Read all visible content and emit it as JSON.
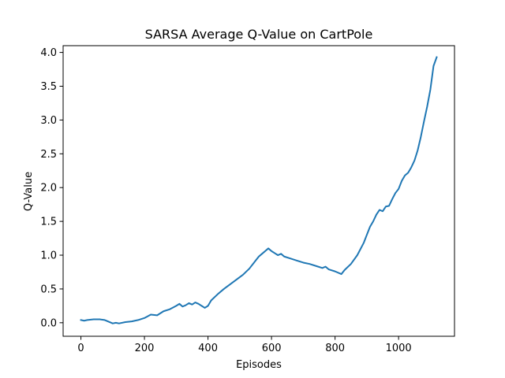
{
  "chart_data": {
    "type": "line",
    "title": "SARSA Average Q-Value on CartPole",
    "xlabel": "Episodes",
    "ylabel": "Q-Value",
    "xlim": [
      -56,
      1176
    ],
    "ylim": [
      -0.2,
      4.1
    ],
    "xticks": [
      0,
      200,
      400,
      600,
      800,
      1000
    ],
    "xtick_labels": [
      "0",
      "200",
      "400",
      "600",
      "800",
      "1000"
    ],
    "yticks": [
      0.0,
      0.5,
      1.0,
      1.5,
      2.0,
      2.5,
      3.0,
      3.5,
      4.0
    ],
    "ytick_labels": [
      "0.0",
      "0.5",
      "1.0",
      "1.5",
      "2.0",
      "2.5",
      "3.0",
      "3.5",
      "4.0"
    ],
    "grid": false,
    "legend": null,
    "line_color": "#1f77b4",
    "series": [
      {
        "x": [
          0,
          10,
          20,
          40,
          60,
          75,
          90,
          100,
          110,
          120,
          140,
          160,
          180,
          200,
          220,
          240,
          260,
          280,
          300,
          310,
          320,
          330,
          340,
          350,
          360,
          370,
          380,
          390,
          400,
          410,
          430,
          450,
          470,
          490,
          510,
          530,
          550,
          560,
          570,
          580,
          590,
          600,
          610,
          620,
          630,
          640,
          660,
          680,
          700,
          720,
          740,
          760,
          770,
          780,
          800,
          820,
          830,
          850,
          870,
          890,
          900,
          910,
          920,
          930,
          940,
          950,
          960,
          970,
          980,
          990,
          1000,
          1010,
          1020,
          1030,
          1040,
          1050,
          1060,
          1070,
          1080,
          1090,
          1100,
          1110,
          1120
        ],
        "y": [
          0.04,
          0.03,
          0.04,
          0.05,
          0.05,
          0.04,
          0.01,
          -0.01,
          0.0,
          -0.01,
          0.01,
          0.02,
          0.04,
          0.07,
          0.12,
          0.11,
          0.17,
          0.2,
          0.25,
          0.28,
          0.24,
          0.26,
          0.29,
          0.27,
          0.3,
          0.28,
          0.25,
          0.22,
          0.25,
          0.33,
          0.42,
          0.5,
          0.57,
          0.64,
          0.71,
          0.8,
          0.92,
          0.98,
          1.02,
          1.06,
          1.1,
          1.06,
          1.03,
          1.0,
          1.02,
          0.98,
          0.95,
          0.92,
          0.89,
          0.87,
          0.84,
          0.81,
          0.83,
          0.79,
          0.76,
          0.72,
          0.78,
          0.87,
          1.0,
          1.18,
          1.3,
          1.42,
          1.5,
          1.6,
          1.67,
          1.65,
          1.72,
          1.73,
          1.83,
          1.92,
          1.98,
          2.1,
          2.18,
          2.22,
          2.3,
          2.4,
          2.55,
          2.75,
          2.98,
          3.2,
          3.45,
          3.8,
          3.93
        ]
      }
    ]
  }
}
